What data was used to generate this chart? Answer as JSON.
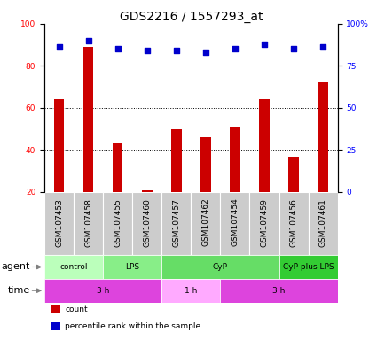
{
  "title": "GDS2216 / 1557293_at",
  "samples": [
    "GSM107453",
    "GSM107458",
    "GSM107455",
    "GSM107460",
    "GSM107457",
    "GSM107462",
    "GSM107454",
    "GSM107459",
    "GSM107456",
    "GSM107461"
  ],
  "counts": [
    64,
    89,
    43,
    21,
    50,
    46,
    51,
    64,
    37,
    72
  ],
  "percentile_ranks": [
    86,
    90,
    85,
    84,
    84,
    83,
    85,
    88,
    85,
    86
  ],
  "ylim_left": [
    20,
    100
  ],
  "ylim_right": [
    0,
    100
  ],
  "yticks_left": [
    20,
    40,
    60,
    80,
    100
  ],
  "yticks_right": [
    0,
    25,
    50,
    75,
    100
  ],
  "ytick_labels_right": [
    "0",
    "25",
    "50",
    "75",
    "100%"
  ],
  "bar_color": "#cc0000",
  "dot_color": "#0000cc",
  "agent_groups": [
    {
      "label": "control",
      "start": 0,
      "end": 2,
      "color": "#bbffbb"
    },
    {
      "label": "LPS",
      "start": 2,
      "end": 4,
      "color": "#88ee88"
    },
    {
      "label": "CyP",
      "start": 4,
      "end": 8,
      "color": "#66dd66"
    },
    {
      "label": "CyP plus LPS",
      "start": 8,
      "end": 10,
      "color": "#33cc33"
    }
  ],
  "time_groups": [
    {
      "label": "3 h",
      "start": 0,
      "end": 4,
      "color": "#dd44dd"
    },
    {
      "label": "1 h",
      "start": 4,
      "end": 6,
      "color": "#ffaaff"
    },
    {
      "label": "3 h",
      "start": 6,
      "end": 10,
      "color": "#dd44dd"
    }
  ],
  "legend_items": [
    {
      "color": "#cc0000",
      "label": "count"
    },
    {
      "color": "#0000cc",
      "label": "percentile rank within the sample"
    }
  ],
  "sample_bg_color": "#cccccc",
  "title_fontsize": 10,
  "tick_fontsize": 6.5,
  "label_fontsize": 8,
  "bar_width": 0.35
}
